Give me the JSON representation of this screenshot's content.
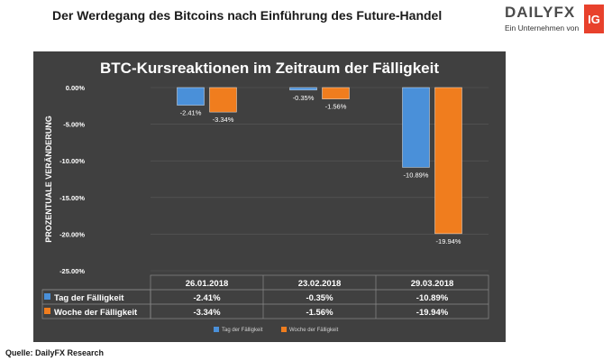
{
  "headline": "Der Werdegang des Bitcoins nach Einführung des Future-Handel",
  "logo": {
    "brand": "DAILYFX",
    "tagline": "Ein Unternehmen von",
    "badge": "IG"
  },
  "source": "Quelle: DailyFX Research",
  "colors": {
    "panel": "#404040",
    "tag_series": "#4a90d9",
    "woche_series": "#f07d1e",
    "text": "#ffffff",
    "grid": "#5a5a5a"
  },
  "chart_data": {
    "type": "bar",
    "title": "BTC-Kursreaktionen im Zeitraum der Fälligkeit",
    "ylabel": "PROZENTUALE VERÄNDERUNG",
    "xlabel": "",
    "ylim": [
      -25,
      0
    ],
    "y_ticks": [
      "0.00%",
      "-5.00%",
      "-10.00%",
      "-15.00%",
      "-20.00%",
      "-25.00%"
    ],
    "categories": [
      "26.01.2018",
      "23.02.2018",
      "29.03.2018"
    ],
    "series": [
      {
        "name": "Tag der Fälligkeit",
        "values": [
          -2.41,
          -0.35,
          -10.89
        ],
        "labels": [
          "-2.41%",
          "-0.35%",
          "-10.89%"
        ]
      },
      {
        "name": "Woche der Fälligkeit",
        "values": [
          -3.34,
          -1.56,
          -19.94
        ],
        "labels": [
          "-3.34%",
          "-1.56%",
          "-19.94%"
        ]
      }
    ],
    "grid": true,
    "legend": "bottom",
    "data_table": true
  }
}
